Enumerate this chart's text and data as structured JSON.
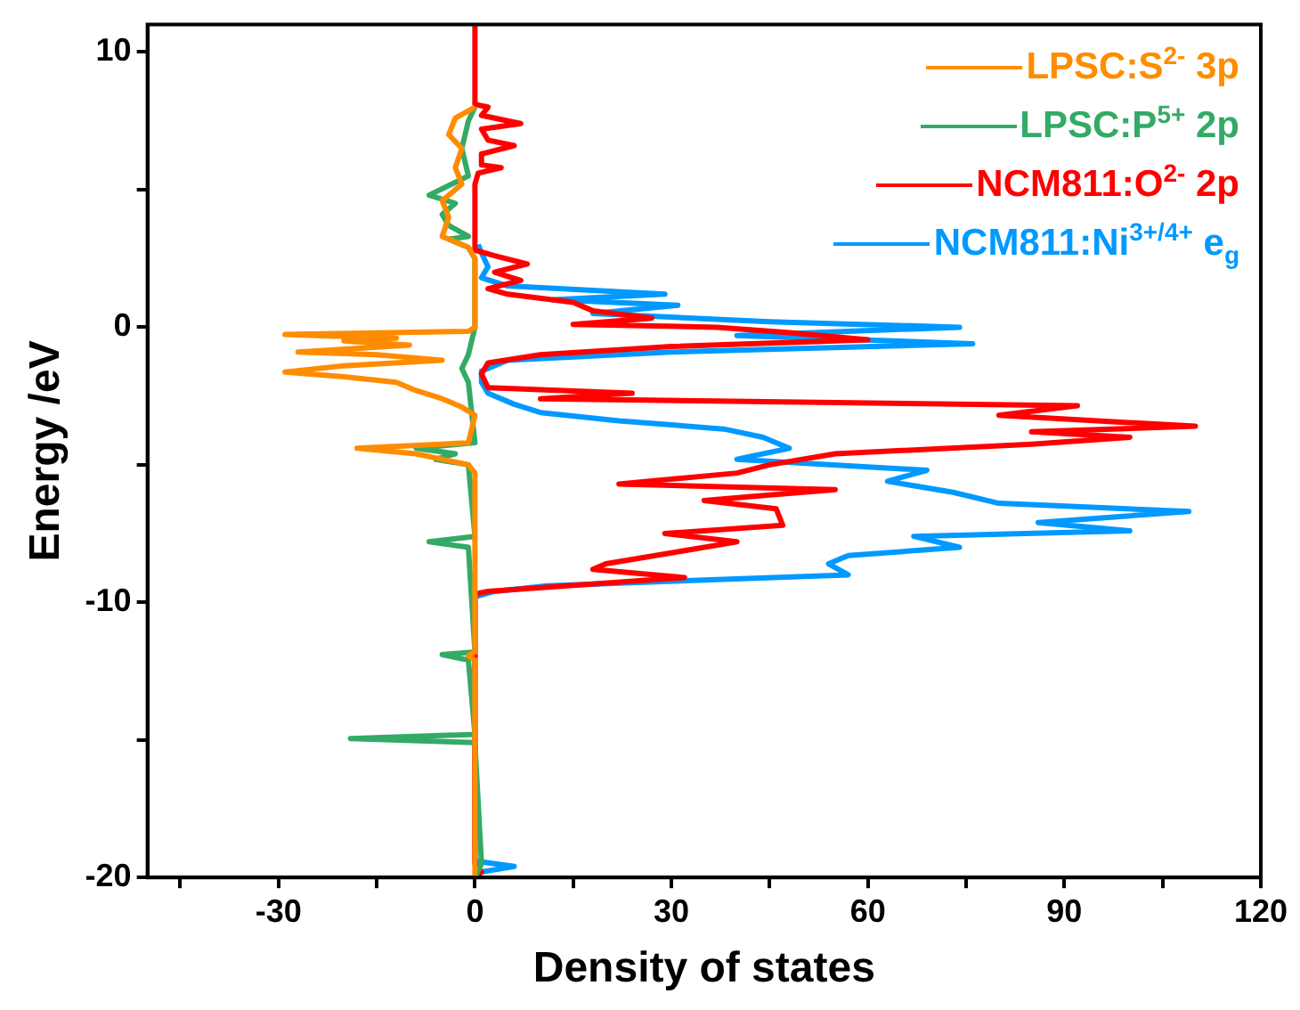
{
  "chart_data": {
    "type": "line",
    "xlabel": "Density of states",
    "ylabel": "Energy /eV",
    "xlim": [
      -50,
      120
    ],
    "ylim": [
      -20,
      11
    ],
    "xticks": [
      {
        "value": -45,
        "label": null
      },
      -30,
      {
        "value": -15,
        "label": null
      },
      0,
      {
        "value": 15,
        "label": null
      },
      30,
      {
        "value": 45,
        "label": null
      },
      60,
      {
        "value": 75,
        "label": null
      },
      90,
      {
        "value": 105,
        "label": null
      },
      120
    ],
    "yticks": [
      -20,
      {
        "value": -15,
        "label": null
      },
      -10,
      {
        "value": -5,
        "label": null
      },
      0,
      {
        "value": 5,
        "label": null
      },
      10
    ],
    "grid": false,
    "legend": "top right",
    "marker": "none",
    "line_style": "solid",
    "series": [
      {
        "name": "LPSC:S$^{2-}$ 3p",
        "color": "#ff8c00",
        "x": [
          0,
          -3,
          -4,
          -2,
          -3,
          -2,
          -5,
          -4,
          -5,
          -1,
          0,
          0,
          -1,
          -29,
          -12,
          -20,
          -10,
          -27,
          -15,
          -5,
          -20,
          -29,
          -20,
          -12,
          -9,
          -5,
          -2,
          0,
          -1,
          -18,
          -9,
          -5,
          -1,
          0,
          0,
          -1,
          0,
          0
        ],
        "values": [
          8.0,
          7.6,
          7.0,
          6.5,
          5.8,
          5.2,
          4.6,
          4.0,
          3.3,
          2.9,
          2.5,
          0,
          -0.15,
          -0.26,
          -0.4,
          -0.5,
          -0.65,
          -0.9,
          -1.0,
          -1.2,
          -1.4,
          -1.63,
          -1.8,
          -2.0,
          -2.3,
          -2.6,
          -2.9,
          -3.2,
          -4.2,
          -4.4,
          -4.6,
          -4.8,
          -5.0,
          -5.3,
          -11.8,
          -11.95,
          -12.1,
          -20
        ]
      },
      {
        "name": "LPSC:P$^{5+}$ 2p",
        "color": "#33aa66",
        "x": [
          0,
          -1,
          -2,
          -1,
          -7,
          -3,
          -5,
          -4,
          -1,
          -4,
          -1,
          0,
          0,
          -1,
          -2,
          -1,
          0,
          -9,
          -3,
          -6,
          -1,
          0,
          -7,
          -1,
          0,
          -5,
          -1,
          0,
          -19,
          0,
          1,
          0
        ],
        "values": [
          8,
          7.5,
          6.5,
          5.5,
          4.8,
          4.5,
          4.1,
          3.7,
          3.3,
          3.2,
          2.9,
          2.5,
          0,
          -1.0,
          -1.5,
          -2,
          -4.2,
          -4.4,
          -4.6,
          -4.8,
          -5.0,
          -7.6,
          -7.8,
          -8.0,
          -11.8,
          -11.9,
          -12.1,
          -14.8,
          -14.95,
          -15.1,
          -19.5,
          -20
        ]
      },
      {
        "name": "NCM811:O$^{2-}$ 2p",
        "color": "#ff0000",
        "x": [
          0,
          0,
          2,
          1,
          7,
          1,
          2,
          6,
          1,
          1,
          4,
          0.5,
          0,
          0,
          3,
          8,
          3,
          7,
          2,
          5,
          15,
          18,
          27,
          15,
          37,
          48,
          60,
          30,
          10,
          2,
          1,
          2,
          24,
          10,
          92,
          80,
          110,
          85,
          100,
          85,
          55,
          45,
          40,
          22,
          55,
          45,
          35,
          46,
          47,
          29,
          40,
          30,
          20,
          18,
          32,
          2,
          0,
          0,
          1,
          0
        ],
        "values": [
          11,
          8.1,
          8.0,
          7.7,
          7.4,
          7.2,
          6.8,
          6.6,
          6.3,
          5.9,
          5.8,
          5.6,
          5.2,
          2.8,
          2.6,
          2.3,
          2.0,
          1.7,
          1.4,
          1.2,
          0.9,
          0.6,
          0.33,
          0.1,
          0,
          -0.2,
          -0.46,
          -0.7,
          -1.0,
          -1.3,
          -1.7,
          -2.2,
          -2.4,
          -2.6,
          -2.85,
          -3.2,
          -3.6,
          -3.8,
          -4.0,
          -4.25,
          -4.6,
          -5.0,
          -5.3,
          -5.7,
          -5.9,
          -6.1,
          -6.3,
          -6.6,
          -7.2,
          -7.5,
          -7.8,
          -8.2,
          -8.6,
          -8.8,
          -9.1,
          -9.6,
          -9.7,
          -19.5,
          -19.8,
          -20
        ]
      },
      {
        "name": "NCM811:Ni$^{3+/4+}$ e$_{g}$",
        "color": "#0099ff",
        "x": [
          0.5,
          1,
          2,
          1,
          5,
          29,
          12,
          31,
          18,
          45,
          74,
          40,
          76,
          30,
          5,
          1,
          1,
          2,
          6,
          10,
          22,
          38,
          44,
          48,
          40,
          69,
          63,
          73,
          80,
          109,
          86,
          100,
          67,
          74,
          57,
          54,
          57,
          11,
          3,
          0,
          0,
          6,
          1,
          0
        ],
        "values": [
          3,
          2.7,
          2.2,
          1.8,
          1.5,
          1.2,
          1.0,
          0.8,
          0.5,
          0.2,
          0,
          -0.3,
          -0.6,
          -0.9,
          -1.2,
          -1.6,
          -2.0,
          -2.4,
          -2.8,
          -3.1,
          -3.4,
          -3.7,
          -4.0,
          -4.4,
          -4.8,
          -5.2,
          -5.6,
          -6.0,
          -6.4,
          -6.7,
          -7.1,
          -7.4,
          -7.6,
          -8.0,
          -8.3,
          -8.6,
          -9.0,
          -9.4,
          -9.6,
          -9.8,
          -19.4,
          -19.6,
          -19.8,
          -20
        ]
      }
    ]
  }
}
